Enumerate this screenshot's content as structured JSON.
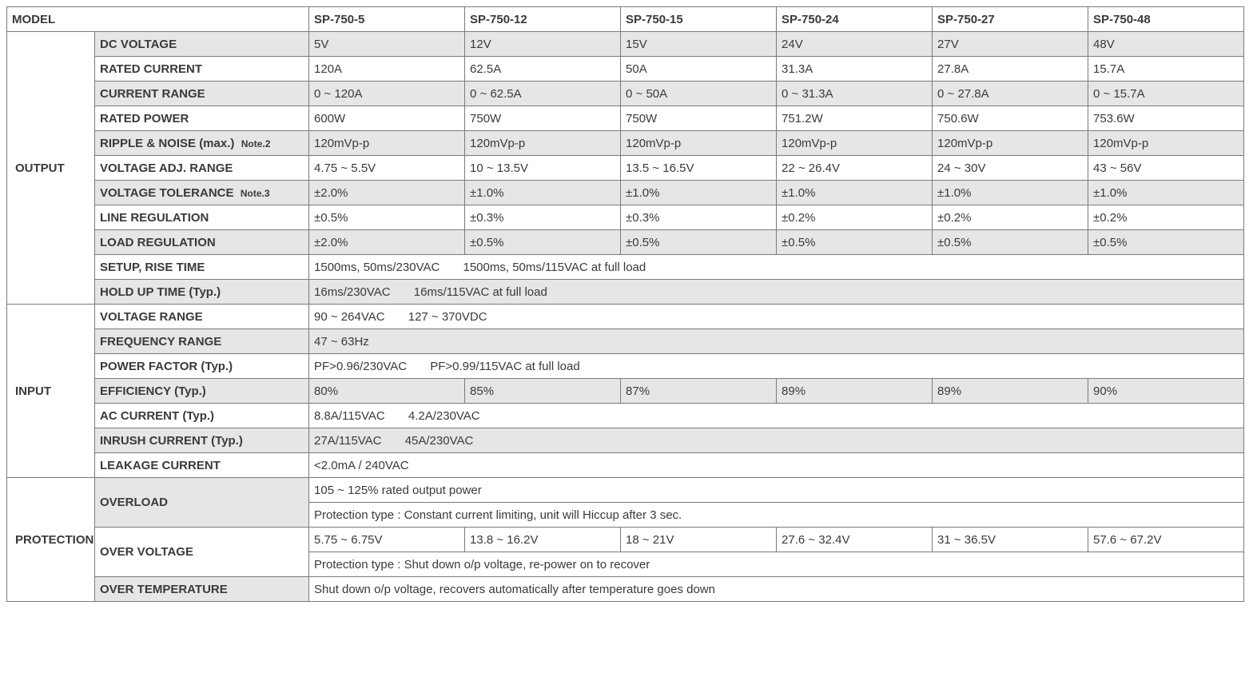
{
  "colors": {
    "border": "#7a7a7a",
    "shade": "#e6e6e6",
    "text": "#3a3a3a",
    "background": "#ffffff"
  },
  "header": {
    "model_label": "MODEL",
    "models": [
      "SP-750-5",
      "SP-750-12",
      "SP-750-15",
      "SP-750-24",
      "SP-750-27",
      "SP-750-48"
    ]
  },
  "sections": {
    "output": {
      "label": "OUTPUT",
      "rows": {
        "dc_voltage": {
          "label": "DC VOLTAGE",
          "shade": true,
          "vals": [
            "5V",
            "12V",
            "15V",
            "24V",
            "27V",
            "48V"
          ]
        },
        "rated_current": {
          "label": "RATED CURRENT",
          "shade": false,
          "vals": [
            "120A",
            "62.5A",
            "50A",
            "31.3A",
            "27.8A",
            "15.7A"
          ]
        },
        "current_range": {
          "label": "CURRENT RANGE",
          "shade": true,
          "vals": [
            "0 ~ 120A",
            "0 ~ 62.5A",
            "0 ~ 50A",
            "0 ~ 31.3A",
            "0 ~ 27.8A",
            "0 ~ 15.7A"
          ]
        },
        "rated_power": {
          "label": "RATED POWER",
          "shade": false,
          "vals": [
            "600W",
            "750W",
            "750W",
            "751.2W",
            "750.6W",
            "753.6W"
          ]
        },
        "ripple_noise": {
          "label": "RIPPLE & NOISE (max.)",
          "note": "Note.2",
          "shade": true,
          "vals": [
            "120mVp-p",
            "120mVp-p",
            "120mVp-p",
            "120mVp-p",
            "120mVp-p",
            "120mVp-p"
          ]
        },
        "vadj_range": {
          "label": "VOLTAGE ADJ. RANGE",
          "shade": false,
          "vals": [
            "4.75 ~ 5.5V",
            "10 ~ 13.5V",
            "13.5 ~ 16.5V",
            "22 ~ 26.4V",
            "24 ~ 30V",
            "43 ~ 56V"
          ]
        },
        "v_tolerance": {
          "label": "VOLTAGE TOLERANCE",
          "note": "Note.3",
          "shade": true,
          "vals": [
            "±2.0%",
            "±1.0%",
            "±1.0%",
            "±1.0%",
            "±1.0%",
            "±1.0%"
          ]
        },
        "line_reg": {
          "label": "LINE REGULATION",
          "shade": false,
          "vals": [
            "±0.5%",
            "±0.3%",
            "±0.3%",
            "±0.2%",
            "±0.2%",
            "±0.2%"
          ]
        },
        "load_reg": {
          "label": "LOAD REGULATION",
          "shade": true,
          "vals": [
            "±2.0%",
            "±0.5%",
            "±0.5%",
            "±0.5%",
            "±0.5%",
            "±0.5%"
          ]
        },
        "setup_rise": {
          "label": "SETUP, RISE TIME",
          "shade": false,
          "span": "1500ms, 50ms/230VAC       1500ms, 50ms/115VAC at full load"
        },
        "holdup": {
          "label": "HOLD UP TIME (Typ.)",
          "shade": true,
          "span": "16ms/230VAC       16ms/115VAC at full load"
        }
      }
    },
    "input": {
      "label": "INPUT",
      "rows": {
        "v_range": {
          "label": "VOLTAGE RANGE",
          "shade": false,
          "span": "90 ~ 264VAC       127 ~ 370VDC"
        },
        "f_range": {
          "label": "FREQUENCY RANGE",
          "shade": true,
          "span": "47 ~ 63Hz"
        },
        "pf": {
          "label": "POWER FACTOR (Typ.)",
          "shade": false,
          "span": "PF>0.96/230VAC       PF>0.99/115VAC at full load"
        },
        "eff": {
          "label": "EFFICIENCY (Typ.)",
          "shade": true,
          "vals": [
            "80%",
            "85%",
            "87%",
            "89%",
            "89%",
            "90%"
          ]
        },
        "ac_curr": {
          "label": "AC CURRENT (Typ.)",
          "shade": false,
          "span": "8.8A/115VAC       4.2A/230VAC"
        },
        "inrush": {
          "label": "INRUSH CURRENT (Typ.)",
          "shade": true,
          "span": "27A/115VAC       45A/230VAC"
        },
        "leakage": {
          "label": "LEAKAGE CURRENT",
          "shade": false,
          "span": "<2.0mA / 240VAC"
        }
      }
    },
    "protection": {
      "label": "PROTECTION",
      "rows": {
        "overload": {
          "label": "OVERLOAD",
          "shade": true,
          "span1": "105 ~ 125% rated output power",
          "span2": "Protection type : Constant current limiting, unit will Hiccup after 3 sec."
        },
        "overvolt": {
          "label": "OVER VOLTAGE",
          "shade": false,
          "vals": [
            "5.75 ~ 6.75V",
            "13.8 ~ 16.2V",
            "18 ~ 21V",
            "27.6 ~ 32.4V",
            "31 ~ 36.5V",
            "57.6 ~ 67.2V"
          ],
          "span2": "Protection type : Shut down o/p voltage, re-power on to recover"
        },
        "overtemp": {
          "label": "OVER TEMPERATURE",
          "shade": true,
          "span": "Shut down o/p voltage, recovers automatically after temperature goes down"
        }
      }
    }
  }
}
